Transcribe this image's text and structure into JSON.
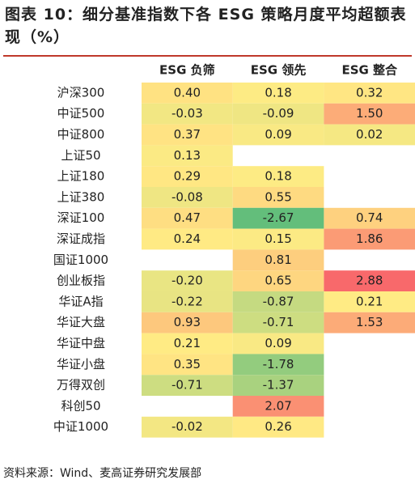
{
  "chart_data": {
    "type": "heatmap",
    "title": "图表 10：细分基准指数下各 ESG 策略月度平均超额表现（%）",
    "source": "资料来源：Wind、麦高证券研究发展部",
    "categories": [
      "沪深300",
      "中证500",
      "中证800",
      "上证50",
      "上证180",
      "上证380",
      "深证100",
      "深证成指",
      "国证1000",
      "创业板指",
      "华证A指",
      "华证大盘",
      "华证中盘",
      "华证小盘",
      "万得双创",
      "科创50",
      "中证1000"
    ],
    "colorscale": [
      "#63be7b",
      "#ffeb84",
      "#f8696b"
    ],
    "series": [
      {
        "name": "ESG 负筛",
        "values": [
          0.4,
          -0.03,
          0.37,
          0.13,
          0.29,
          -0.08,
          0.47,
          0.24,
          null,
          -0.2,
          -0.22,
          0.93,
          0.21,
          0.35,
          -0.71,
          null,
          -0.02
        ],
        "value_labels": [
          "0.40",
          "-0.03",
          "0.37",
          "0.13",
          "0.29",
          "-0.08",
          "0.47",
          "0.24",
          null,
          "-0.20",
          "-0.22",
          "0.93",
          "0.21",
          "0.35",
          "-0.71",
          null,
          "-0.02"
        ]
      },
      {
        "name": "ESG 领先",
        "values": [
          0.18,
          -0.09,
          0.09,
          null,
          0.18,
          0.55,
          -2.67,
          0.15,
          0.81,
          0.65,
          -0.87,
          -0.71,
          0.09,
          -1.78,
          -1.37,
          2.07,
          0.26
        ],
        "value_labels": [
          "0.18",
          "-0.09",
          "0.09",
          null,
          "0.18",
          "0.55",
          "-2.67",
          "0.15",
          "0.81",
          "0.65",
          "-0.87",
          "-0.71",
          "0.09",
          "-1.78",
          "-1.37",
          "2.07",
          "0.26"
        ]
      },
      {
        "name": "ESG 整合",
        "values": [
          0.32,
          1.5,
          0.02,
          null,
          null,
          null,
          0.74,
          1.86,
          null,
          2.88,
          0.21,
          1.53,
          null,
          null,
          null,
          null,
          null
        ],
        "value_labels": [
          "0.32",
          "1.50",
          "0.02",
          null,
          null,
          null,
          "0.74",
          "1.86",
          null,
          "2.88",
          "0.21",
          "1.53",
          null,
          null,
          null,
          null,
          null
        ]
      }
    ]
  }
}
